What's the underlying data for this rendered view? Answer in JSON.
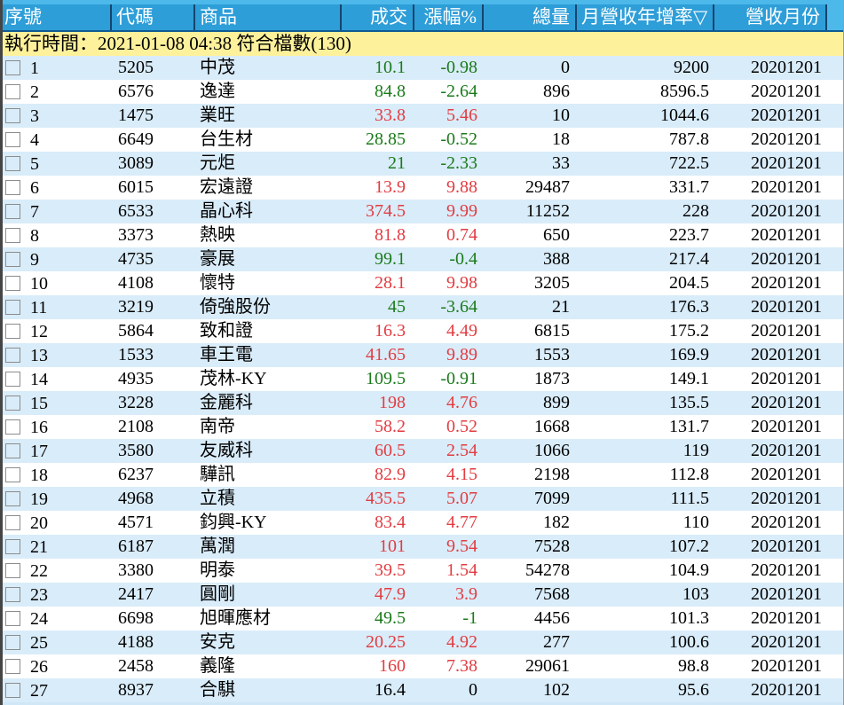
{
  "app": {
    "description_title": "stock-screener-result-table",
    "colors": {
      "header_bg": "#2e9ed8",
      "header_text": "#ffffff",
      "header_separator": "#16446e",
      "top_strip": "#4cb9ea",
      "status_bg": "#fdf19b",
      "row_stripe": "#d9ecf9",
      "row_plain": "#ffffff",
      "up_color": "#e23c41",
      "down_color": "#1a7a1a",
      "flat_color": "#000000"
    }
  },
  "header": {
    "columns": [
      {
        "id": "seq",
        "label": "序號",
        "align": "left"
      },
      {
        "id": "code",
        "label": "代碼",
        "align": "left"
      },
      {
        "id": "name",
        "label": "商品",
        "align": "left"
      },
      {
        "id": "price",
        "label": "成交",
        "align": "right"
      },
      {
        "id": "change",
        "label": "漲幅%",
        "align": "right"
      },
      {
        "id": "volume",
        "label": "總量",
        "align": "right"
      },
      {
        "id": "growth",
        "label": "月營收年增率▽",
        "align": "left",
        "sorted": "desc"
      },
      {
        "id": "month",
        "label": "營收月份",
        "align": "right"
      }
    ]
  },
  "status_bar": {
    "text": "執行時間：2021-01-08 04:38 符合檔數(130)",
    "run_time": "2021-01-08 04:38",
    "match_count": 130
  },
  "table": {
    "checkboxes_checked": false,
    "rows": [
      {
        "seq": 1,
        "code": "5205",
        "name": "中茂",
        "price": "10.1",
        "change": "-0.98",
        "volume": "0",
        "growth": "9200",
        "month": "20201201",
        "trend": "down"
      },
      {
        "seq": 2,
        "code": "6576",
        "name": "逸達",
        "price": "84.8",
        "change": "-2.64",
        "volume": "896",
        "growth": "8596.5",
        "month": "20201201",
        "trend": "down"
      },
      {
        "seq": 3,
        "code": "1475",
        "name": "業旺",
        "price": "33.8",
        "change": "5.46",
        "volume": "10",
        "growth": "1044.6",
        "month": "20201201",
        "trend": "up"
      },
      {
        "seq": 4,
        "code": "6649",
        "name": "台生材",
        "price": "28.85",
        "change": "-0.52",
        "volume": "18",
        "growth": "787.8",
        "month": "20201201",
        "trend": "down"
      },
      {
        "seq": 5,
        "code": "3089",
        "name": "元炬",
        "price": "21",
        "change": "-2.33",
        "volume": "33",
        "growth": "722.5",
        "month": "20201201",
        "trend": "down"
      },
      {
        "seq": 6,
        "code": "6015",
        "name": "宏遠證",
        "price": "13.9",
        "change": "9.88",
        "volume": "29487",
        "growth": "331.7",
        "month": "20201201",
        "trend": "up"
      },
      {
        "seq": 7,
        "code": "6533",
        "name": "晶心科",
        "price": "374.5",
        "change": "9.99",
        "volume": "11252",
        "growth": "228",
        "month": "20201201",
        "trend": "up"
      },
      {
        "seq": 8,
        "code": "3373",
        "name": "熱映",
        "price": "81.8",
        "change": "0.74",
        "volume": "650",
        "growth": "223.7",
        "month": "20201201",
        "trend": "up"
      },
      {
        "seq": 9,
        "code": "4735",
        "name": "豪展",
        "price": "99.1",
        "change": "-0.4",
        "volume": "388",
        "growth": "217.4",
        "month": "20201201",
        "trend": "down"
      },
      {
        "seq": 10,
        "code": "4108",
        "name": "懷特",
        "price": "28.1",
        "change": "9.98",
        "volume": "3205",
        "growth": "204.5",
        "month": "20201201",
        "trend": "up"
      },
      {
        "seq": 11,
        "code": "3219",
        "name": "倚強股份",
        "price": "45",
        "change": "-3.64",
        "volume": "21",
        "growth": "176.3",
        "month": "20201201",
        "trend": "down"
      },
      {
        "seq": 12,
        "code": "5864",
        "name": "致和證",
        "price": "16.3",
        "change": "4.49",
        "volume": "6815",
        "growth": "175.2",
        "month": "20201201",
        "trend": "up"
      },
      {
        "seq": 13,
        "code": "1533",
        "name": "車王電",
        "price": "41.65",
        "change": "9.89",
        "volume": "1553",
        "growth": "169.9",
        "month": "20201201",
        "trend": "up"
      },
      {
        "seq": 14,
        "code": "4935",
        "name": "茂林-KY",
        "price": "109.5",
        "change": "-0.91",
        "volume": "1873",
        "growth": "149.1",
        "month": "20201201",
        "trend": "down"
      },
      {
        "seq": 15,
        "code": "3228",
        "name": "金麗科",
        "price": "198",
        "change": "4.76",
        "volume": "899",
        "growth": "135.5",
        "month": "20201201",
        "trend": "up"
      },
      {
        "seq": 16,
        "code": "2108",
        "name": "南帝",
        "price": "58.2",
        "change": "0.52",
        "volume": "1668",
        "growth": "131.7",
        "month": "20201201",
        "trend": "up"
      },
      {
        "seq": 17,
        "code": "3580",
        "name": "友威科",
        "price": "60.5",
        "change": "2.54",
        "volume": "1066",
        "growth": "119",
        "month": "20201201",
        "trend": "up"
      },
      {
        "seq": 18,
        "code": "6237",
        "name": "驊訊",
        "price": "82.9",
        "change": "4.15",
        "volume": "2198",
        "growth": "112.8",
        "month": "20201201",
        "trend": "up"
      },
      {
        "seq": 19,
        "code": "4968",
        "name": "立積",
        "price": "435.5",
        "change": "5.07",
        "volume": "7099",
        "growth": "111.5",
        "month": "20201201",
        "trend": "up"
      },
      {
        "seq": 20,
        "code": "4571",
        "name": "鈞興-KY",
        "price": "83.4",
        "change": "4.77",
        "volume": "182",
        "growth": "110",
        "month": "20201201",
        "trend": "up"
      },
      {
        "seq": 21,
        "code": "6187",
        "name": "萬潤",
        "price": "101",
        "change": "9.54",
        "volume": "7528",
        "growth": "107.2",
        "month": "20201201",
        "trend": "up"
      },
      {
        "seq": 22,
        "code": "3380",
        "name": "明泰",
        "price": "39.5",
        "change": "1.54",
        "volume": "54278",
        "growth": "104.9",
        "month": "20201201",
        "trend": "up"
      },
      {
        "seq": 23,
        "code": "2417",
        "name": "圓剛",
        "price": "47.9",
        "change": "3.9",
        "volume": "7568",
        "growth": "103",
        "month": "20201201",
        "trend": "up"
      },
      {
        "seq": 24,
        "code": "6698",
        "name": "旭暉應材",
        "price": "49.5",
        "change": "-1",
        "volume": "4456",
        "growth": "101.3",
        "month": "20201201",
        "trend": "down"
      },
      {
        "seq": 25,
        "code": "4188",
        "name": "安克",
        "price": "20.25",
        "change": "4.92",
        "volume": "277",
        "growth": "100.6",
        "month": "20201201",
        "trend": "up"
      },
      {
        "seq": 26,
        "code": "2458",
        "name": "義隆",
        "price": "160",
        "change": "7.38",
        "volume": "29061",
        "growth": "98.8",
        "month": "20201201",
        "trend": "up"
      },
      {
        "seq": 27,
        "code": "8937",
        "name": "合騏",
        "price": "16.4",
        "change": "0",
        "volume": "102",
        "growth": "95.6",
        "month": "20201201",
        "trend": "flat"
      }
    ]
  }
}
